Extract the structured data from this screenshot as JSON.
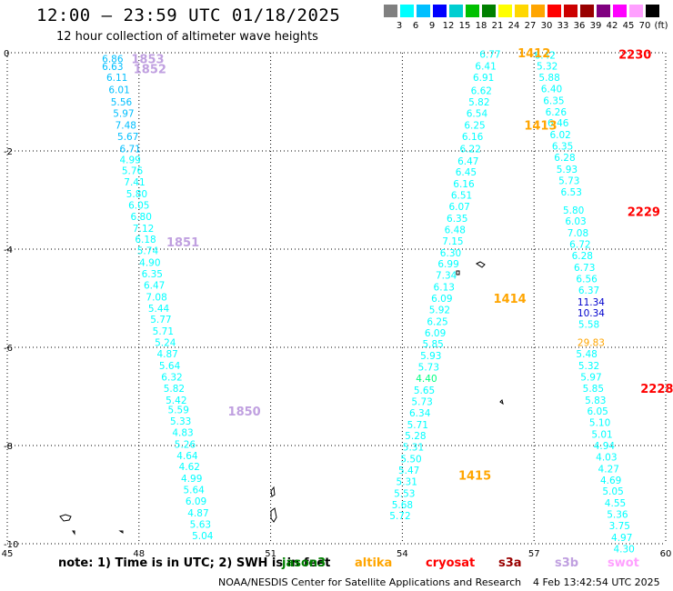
{
  "header": {
    "title": "12:00 – 23:59 UTC 01/18/2025",
    "subtitle": "12 hour collection of altimeter wave heights"
  },
  "color_scale": {
    "labels": [
      "3",
      "6",
      "9",
      "12",
      "15",
      "18",
      "21",
      "24",
      "27",
      "30",
      "33",
      "36",
      "39",
      "42",
      "45",
      "70",
      "(ft)"
    ],
    "colors": [
      "#808080",
      "#00ffff",
      "#00bfff",
      "#0000ff",
      "#00ced1",
      "#00c000",
      "#008000",
      "#ffff00",
      "#ffd700",
      "#ffa500",
      "#ff0000",
      "#cc0000",
      "#990000",
      "#800080",
      "#ff00ff",
      "#ffa0ff",
      "#000000"
    ]
  },
  "footer": {
    "note_prefix": "note:  1) Time is in UTC; 2) SWH is in feet",
    "satellites": [
      {
        "name": "jason3",
        "color": "#008000"
      },
      {
        "name": "altika",
        "color": "#ffa500"
      },
      {
        "name": "cryosat",
        "color": "#ff0000"
      },
      {
        "name": "s3a",
        "color": "#990000"
      },
      {
        "name": "s3b",
        "color": "#c0a0e0"
      },
      {
        "name": "swot",
        "color": "#ffa0ff"
      }
    ],
    "credit": "NOAA/NESDIS Center for Satellite Applications and Research",
    "timestamp": "4 Feb 13:42:54 UTC 2025"
  },
  "chart_data": {
    "type": "scatter",
    "title": "12:00 – 23:59 UTC 01/18/2025",
    "xlabel": "",
    "ylabel": "",
    "xlim": [
      45,
      60
    ],
    "ylim": [
      -10,
      0
    ],
    "xticks": [
      "45",
      "48",
      "51",
      "54",
      "57",
      "60"
    ],
    "yticks": [
      "0",
      "-2",
      "-4",
      "-6",
      "-8",
      "-10"
    ],
    "grid": true,
    "tracks": [
      {
        "color": "#00bfff",
        "points": [
          [
            47.4,
            -0.12,
            "6.86"
          ],
          [
            47.4,
            -0.28,
            "6.63"
          ],
          [
            47.5,
            -0.5,
            "6.11"
          ],
          [
            47.55,
            -0.75,
            "6.01"
          ],
          [
            47.6,
            -1.0,
            "5.56"
          ],
          [
            47.65,
            -1.23,
            "5.97"
          ],
          [
            47.7,
            -1.47,
            "7.48"
          ],
          [
            47.75,
            -1.7,
            "5.67"
          ],
          [
            47.8,
            -1.95,
            "6.71"
          ]
        ]
      },
      {
        "color": "#00ffff",
        "points": [
          [
            47.8,
            -2.18,
            "4.99"
          ],
          [
            47.85,
            -2.4,
            "5.76"
          ],
          [
            47.9,
            -2.63,
            "7.41"
          ],
          [
            47.95,
            -2.87,
            "5.80"
          ],
          [
            48.0,
            -3.1,
            "6.05"
          ],
          [
            48.05,
            -3.33,
            "6.80"
          ],
          [
            48.1,
            -3.57,
            "7.12"
          ],
          [
            48.15,
            -3.8,
            "6.18"
          ],
          [
            48.2,
            -4.03,
            "5.74"
          ],
          [
            48.25,
            -4.27,
            "4.90"
          ],
          [
            48.3,
            -4.5,
            "6.35"
          ],
          [
            48.35,
            -4.73,
            "6.47"
          ],
          [
            48.4,
            -4.97,
            "7.08"
          ],
          [
            48.45,
            -5.2,
            "5.44"
          ],
          [
            48.5,
            -5.43,
            "5.77"
          ],
          [
            48.55,
            -5.67,
            "5.71"
          ],
          [
            48.6,
            -5.9,
            "5.24"
          ],
          [
            48.65,
            -6.13,
            "4.87"
          ],
          [
            48.7,
            -6.37,
            "5.64"
          ],
          [
            48.75,
            -6.6,
            "6.32"
          ],
          [
            48.8,
            -6.83,
            "5.82"
          ],
          [
            48.85,
            -7.07,
            "5.42"
          ],
          [
            48.9,
            -7.27,
            "5.59"
          ],
          [
            48.95,
            -7.5,
            "5.33"
          ],
          [
            49.0,
            -7.73,
            "4.83"
          ],
          [
            49.05,
            -7.97,
            "5.26"
          ],
          [
            49.1,
            -8.2,
            "4.64"
          ],
          [
            49.15,
            -8.43,
            "4.62"
          ],
          [
            49.2,
            -8.67,
            "4.99"
          ],
          [
            49.25,
            -8.9,
            "5.64"
          ],
          [
            49.3,
            -9.13,
            "6.09"
          ],
          [
            49.35,
            -9.37,
            "4.87"
          ],
          [
            49.4,
            -9.6,
            "5.63"
          ],
          [
            49.45,
            -9.83,
            "5.04"
          ]
        ]
      },
      {
        "color": "#00ffff",
        "points": [
          [
            56.0,
            -0.03,
            "6.77"
          ],
          [
            55.9,
            -0.27,
            "6.41"
          ],
          [
            55.85,
            -0.5,
            "6.91"
          ],
          [
            55.8,
            -0.77,
            "6.62"
          ],
          [
            55.75,
            -1.0,
            "5.82"
          ],
          [
            55.7,
            -1.23,
            "6.54"
          ],
          [
            55.65,
            -1.47,
            "6.25"
          ],
          [
            55.6,
            -1.7,
            "6.16"
          ],
          [
            55.55,
            -1.95,
            "6.22"
          ],
          [
            55.5,
            -2.2,
            "6.47"
          ],
          [
            55.45,
            -2.43,
            "6.45"
          ],
          [
            55.4,
            -2.67,
            "6.16"
          ],
          [
            55.35,
            -2.9,
            "6.51"
          ],
          [
            55.3,
            -3.13,
            "6.07"
          ],
          [
            55.25,
            -3.37,
            "6.35"
          ],
          [
            55.2,
            -3.6,
            "6.48"
          ],
          [
            55.15,
            -3.83,
            "7.15"
          ],
          [
            55.1,
            -4.07,
            "6.30"
          ],
          [
            55.05,
            -4.3,
            "6.99"
          ],
          [
            55.0,
            -4.53,
            "7.34"
          ],
          [
            54.95,
            -4.77,
            "6.13"
          ],
          [
            54.9,
            -5.0,
            "6.09"
          ],
          [
            54.85,
            -5.23,
            "5.92"
          ],
          [
            54.8,
            -5.47,
            "6.25"
          ],
          [
            54.75,
            -5.7,
            "6.09"
          ],
          [
            54.7,
            -5.93,
            "5.85"
          ],
          [
            54.65,
            -6.17,
            "5.93"
          ],
          [
            54.6,
            -6.4,
            "5.73"
          ]
        ]
      },
      {
        "color": "#00ff80",
        "points": [
          [
            54.55,
            -6.63,
            "4.40"
          ]
        ]
      },
      {
        "color": "#00ffff",
        "points": [
          [
            54.5,
            -6.87,
            "5.65"
          ],
          [
            54.45,
            -7.1,
            "5.73"
          ],
          [
            54.4,
            -7.33,
            "6.34"
          ],
          [
            54.35,
            -7.57,
            "5.71"
          ],
          [
            54.3,
            -7.8,
            "5.28"
          ],
          [
            54.25,
            -8.03,
            "5.31"
          ],
          [
            54.2,
            -8.27,
            "5.50"
          ],
          [
            54.15,
            -8.5,
            "5.47"
          ],
          [
            54.1,
            -8.73,
            "5.31"
          ],
          [
            54.05,
            -8.97,
            "5.53"
          ],
          [
            54.0,
            -9.2,
            "5.68"
          ],
          [
            53.95,
            -9.43,
            "5.72"
          ]
        ]
      },
      {
        "color": "#00ffff",
        "points": [
          [
            57.25,
            -0.05,
            "6.42"
          ],
          [
            57.3,
            -0.27,
            "5.32"
          ],
          [
            57.35,
            -0.5,
            "5.88"
          ],
          [
            57.4,
            -0.73,
            "6.40"
          ],
          [
            57.45,
            -0.97,
            "6.35"
          ],
          [
            57.5,
            -1.2,
            "6.26"
          ],
          [
            57.55,
            -1.43,
            "6.46"
          ],
          [
            57.6,
            -1.67,
            "6.02"
          ],
          [
            57.65,
            -1.9,
            "6.35"
          ],
          [
            57.7,
            -2.13,
            "6.28"
          ],
          [
            57.75,
            -2.37,
            "5.93"
          ],
          [
            57.8,
            -2.6,
            "5.73"
          ],
          [
            57.85,
            -2.83,
            "6.53"
          ],
          [
            57.9,
            -3.2,
            "5.80"
          ],
          [
            57.95,
            -3.43,
            "6.03"
          ],
          [
            58.0,
            -3.67,
            "7.08"
          ],
          [
            58.05,
            -3.9,
            "6.72"
          ],
          [
            58.1,
            -4.13,
            "6.28"
          ],
          [
            58.15,
            -4.37,
            "6.73"
          ],
          [
            58.2,
            -4.6,
            "6.56"
          ],
          [
            58.25,
            -4.83,
            "6.37"
          ]
        ]
      },
      {
        "color": "#0000cd",
        "points": [
          [
            58.3,
            -5.07,
            "11.34"
          ],
          [
            58.3,
            -5.3,
            "10.34"
          ]
        ]
      },
      {
        "color": "#00ffff",
        "points": [
          [
            58.25,
            -5.53,
            "5.58"
          ]
        ]
      },
      {
        "color": "#ffa500",
        "points": [
          [
            58.3,
            -5.9,
            "29.83"
          ]
        ]
      },
      {
        "color": "#00ffff",
        "points": [
          [
            58.2,
            -6.13,
            "5.48"
          ],
          [
            58.25,
            -6.37,
            "5.32"
          ],
          [
            58.3,
            -6.6,
            "5.97"
          ],
          [
            58.35,
            -6.83,
            "5.85"
          ],
          [
            58.4,
            -7.07,
            "5.83"
          ],
          [
            58.45,
            -7.3,
            "6.05"
          ],
          [
            58.5,
            -7.53,
            "5.10"
          ],
          [
            58.55,
            -7.77,
            "5.01"
          ],
          [
            58.6,
            -8.0,
            "4.94"
          ],
          [
            58.65,
            -8.23,
            "4.03"
          ],
          [
            58.7,
            -8.47,
            "4.27"
          ],
          [
            58.75,
            -8.7,
            "4.69"
          ],
          [
            58.8,
            -8.93,
            "5.05"
          ],
          [
            58.85,
            -9.17,
            "4.55"
          ],
          [
            58.9,
            -9.4,
            "5.36"
          ],
          [
            58.95,
            -9.63,
            "3.75"
          ],
          [
            59.0,
            -9.87,
            "4.97"
          ],
          [
            59.05,
            -10.1,
            "4.30"
          ]
        ]
      }
    ],
    "pass_labels": [
      {
        "text": "1853",
        "x": 48.2,
        "y": -0.12,
        "color": "#c0a0e0"
      },
      {
        "text": "1852",
        "x": 48.25,
        "y": -0.32,
        "color": "#c0a0e0"
      },
      {
        "text": "1851",
        "x": 49.0,
        "y": -3.85,
        "color": "#c0a0e0"
      },
      {
        "text": "1850",
        "x": 50.4,
        "y": -7.3,
        "color": "#c0a0e0"
      },
      {
        "text": "1412",
        "x": 57.0,
        "y": 0.0,
        "color": "#ffa500"
      },
      {
        "text": "1413",
        "x": 57.15,
        "y": -1.47,
        "color": "#ffa500"
      },
      {
        "text": "1414",
        "x": 56.45,
        "y": -5.0,
        "color": "#ffa500"
      },
      {
        "text": "1415",
        "x": 55.65,
        "y": -8.6,
        "color": "#ffa500"
      },
      {
        "text": "2230",
        "x": 59.3,
        "y": -0.03,
        "color": "#ff0000"
      },
      {
        "text": "2229",
        "x": 59.5,
        "y": -3.23,
        "color": "#ff0000"
      },
      {
        "text": "2228",
        "x": 59.8,
        "y": -6.83,
        "color": "#ff0000"
      }
    ]
  }
}
